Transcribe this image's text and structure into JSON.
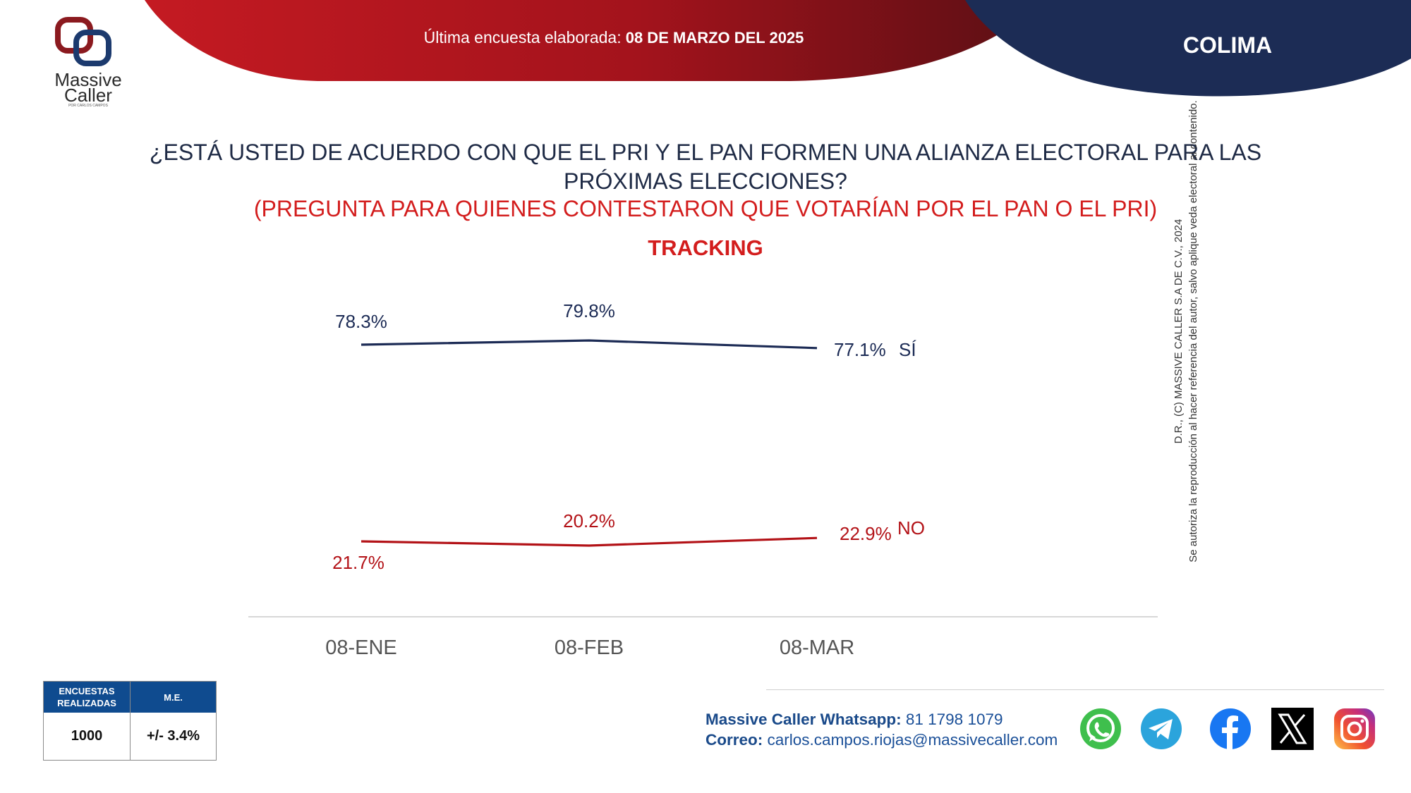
{
  "header": {
    "survey_label": "Última encuesta elaborada:",
    "survey_date": "08 DE MARZO DEL 2025",
    "region": "COLIMA",
    "colors": {
      "red": "#b5121b",
      "navy": "#1c2c55"
    }
  },
  "logo": {
    "line1": "Massive",
    "line2": "Caller",
    "tagline": "POR CARLOS CAMPOS"
  },
  "question": {
    "text": "¿ESTÁ USTED DE ACUERDO CON QUE EL PRI Y EL PAN FORMEN UNA ALIANZA ELECTORAL PARA LAS PRÓXIMAS ELECCIONES?",
    "subtext": "(PREGUNTA PARA QUIENES CONTESTARON QUE VOTARÍAN POR EL PAN O EL PRI)",
    "tracking": "TRACKING"
  },
  "chart_data": {
    "type": "line",
    "categories": [
      "08-ENE",
      "08-FEB",
      "08-MAR"
    ],
    "series": [
      {
        "name": "SÍ",
        "values": [
          78.3,
          79.8,
          77.1
        ],
        "labels": [
          "78.3%",
          "79.8%",
          "77.1%"
        ],
        "color": "#1c2b55"
      },
      {
        "name": "NO",
        "values": [
          21.7,
          20.2,
          22.9
        ],
        "labels": [
          "21.7%",
          "20.2%",
          "22.9%"
        ],
        "color": "#b31217"
      }
    ],
    "ylim": [
      0,
      100
    ],
    "grid": false,
    "xlabel": "",
    "ylabel": ""
  },
  "copyright": {
    "line1": "D.R., (C) MASSIVE CALLER S.A DE C.V., 2024",
    "line2": "Se autoriza la reproducción al hacer referencia del autor, salvo aplique veda electoral al contenido."
  },
  "methodology": {
    "header_surveys": "ENCUESTAS REALIZADAS",
    "header_me": "M.E.",
    "surveys": "1000",
    "me": "+/- 3.4%"
  },
  "contact": {
    "whatsapp_label": "Massive Caller Whatsapp:",
    "whatsapp_number": "81 1798 1079",
    "email_label": "Correo:",
    "email": "carlos.campos.riojas@massivecaller.com"
  },
  "social_icons": [
    "whatsapp-icon",
    "telegram-icon",
    "facebook-icon",
    "x-icon",
    "instagram-icon"
  ]
}
